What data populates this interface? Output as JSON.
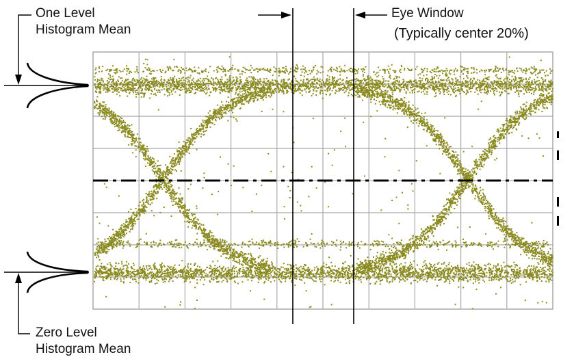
{
  "labels": {
    "one_level_line1": "One Level",
    "one_level_line2": "Histogram Mean",
    "zero_level_line1": "Zero Level",
    "zero_level_line2": "Histogram Mean",
    "eye_window_line1": "Eye Window",
    "eye_window_line2": "(Typically center 20%)"
  },
  "colors": {
    "trace": "#8a8a1e",
    "grid": "#a8a8a8",
    "lines": "#000000",
    "background": "#ffffff"
  },
  "grid": {
    "columns": 10,
    "rows": 8
  }
}
